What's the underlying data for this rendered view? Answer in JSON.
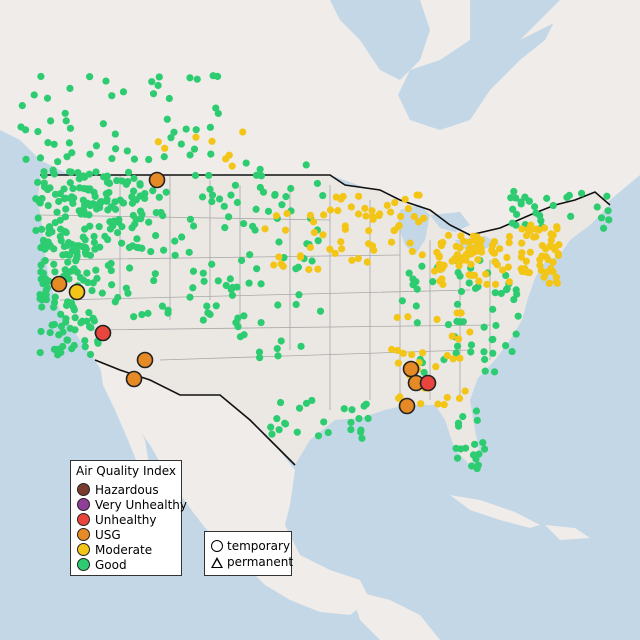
{
  "legend": {
    "title": "Air Quality Index",
    "items": [
      {
        "label": "Hazardous",
        "color": "#7a3b2e"
      },
      {
        "label": "Very Unhealthy",
        "color": "#8f3f97"
      },
      {
        "label": "Unhealthy",
        "color": "#e8453c"
      },
      {
        "label": "USG",
        "color": "#e58a24"
      },
      {
        "label": "Moderate",
        "color": "#f2c517"
      },
      {
        "label": "Good",
        "color": "#2ecc71"
      }
    ]
  },
  "type_legend": {
    "temporary_label": "temporary",
    "permanent_label": "permanent"
  },
  "map": {
    "land_color": "#efecea",
    "ocean_color": "#c3d7e6",
    "us_land_color": "#ebe8e4",
    "border_color": "#111111",
    "state_line_color": "#a8a8a8"
  }
}
